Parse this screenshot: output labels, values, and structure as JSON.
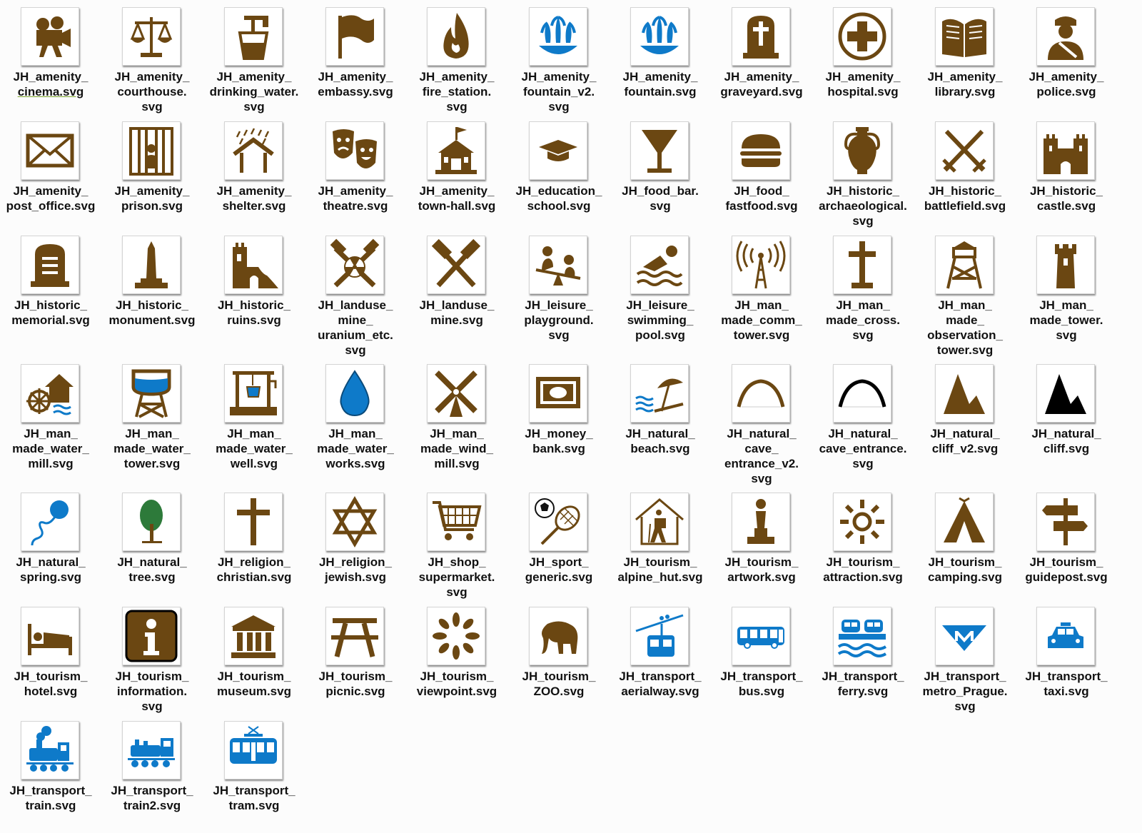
{
  "colors": {
    "brown": "#6b4712",
    "blue": "#0e7ac9",
    "black": "#000000"
  },
  "items": [
    {
      "lines": [
        "JH_amenity_",
        "cinema.svg"
      ],
      "icon": "cinema-icon",
      "color": "brown",
      "selected": true
    },
    {
      "lines": [
        "JH_amenity_",
        "courthouse.",
        "svg"
      ],
      "icon": "scales-icon",
      "color": "brown"
    },
    {
      "lines": [
        "JH_amenity_",
        "drinking_water.",
        "svg"
      ],
      "icon": "tap-cup-icon",
      "color": "brown"
    },
    {
      "lines": [
        "JH_amenity_",
        "embassy.svg"
      ],
      "icon": "flag-icon",
      "color": "brown"
    },
    {
      "lines": [
        "JH_amenity_",
        "fire_station.",
        "svg"
      ],
      "icon": "flame-icon",
      "color": "brown"
    },
    {
      "lines": [
        "JH_amenity_",
        "fountain_v2.",
        "svg"
      ],
      "icon": "fountain-icon",
      "color": "blue"
    },
    {
      "lines": [
        "JH_amenity_",
        "fountain.svg"
      ],
      "icon": "fountain-icon",
      "color": "blue"
    },
    {
      "lines": [
        "JH_amenity_",
        "graveyard.svg"
      ],
      "icon": "gravestone-cross-icon",
      "color": "brown"
    },
    {
      "lines": [
        "JH_amenity_",
        "hospital.svg"
      ],
      "icon": "hospital-cross-icon",
      "color": "brown"
    },
    {
      "lines": [
        "JH_amenity_",
        "library.svg"
      ],
      "icon": "book-icon",
      "color": "brown"
    },
    {
      "lines": [
        "JH_amenity_",
        "police.svg"
      ],
      "icon": "police-icon",
      "color": "brown"
    },
    {
      "lines": [
        "JH_amenity_",
        "post_office.svg"
      ],
      "icon": "envelope-icon",
      "color": "brown"
    },
    {
      "lines": [
        "JH_amenity_",
        "prison.svg"
      ],
      "icon": "prison-bars-icon",
      "color": "brown"
    },
    {
      "lines": [
        "JH_amenity_",
        "shelter.svg"
      ],
      "icon": "shelter-rain-icon",
      "color": "brown"
    },
    {
      "lines": [
        "JH_amenity_",
        "theatre.svg"
      ],
      "icon": "theatre-masks-icon",
      "color": "brown"
    },
    {
      "lines": [
        "JH_amenity_",
        "town-hall.svg"
      ],
      "icon": "town-hall-icon",
      "color": "brown"
    },
    {
      "lines": [
        "JH_education_",
        "school.svg"
      ],
      "icon": "mortarboard-icon",
      "color": "brown"
    },
    {
      "lines": [
        "JH_food_bar.",
        "svg"
      ],
      "icon": "cocktail-glass-icon",
      "color": "brown"
    },
    {
      "lines": [
        "JH_food_",
        "fastfood.svg"
      ],
      "icon": "burger-icon",
      "color": "brown"
    },
    {
      "lines": [
        "JH_historic_",
        "archaeological.",
        "svg"
      ],
      "icon": "amphora-icon",
      "color": "brown"
    },
    {
      "lines": [
        "JH_historic_",
        "battlefield.svg"
      ],
      "icon": "crossed-swords-icon",
      "color": "brown"
    },
    {
      "lines": [
        "JH_historic_",
        "castle.svg"
      ],
      "icon": "castle-icon",
      "color": "brown"
    },
    {
      "lines": [
        "JH_historic_",
        "memorial.svg"
      ],
      "icon": "memorial-stone-icon",
      "color": "brown"
    },
    {
      "lines": [
        "JH_historic_",
        "monument.svg"
      ],
      "icon": "obelisk-icon",
      "color": "brown"
    },
    {
      "lines": [
        "JH_historic_",
        "ruins.svg"
      ],
      "icon": "ruins-icon",
      "color": "brown"
    },
    {
      "lines": [
        "JH_landuse_",
        "mine_",
        "uranium_etc.",
        "svg"
      ],
      "icon": "mine-radiation-icon",
      "color": "brown"
    },
    {
      "lines": [
        "JH_landuse_",
        "mine.svg"
      ],
      "icon": "crossed-hammers-icon",
      "color": "brown"
    },
    {
      "lines": [
        "JH_leisure_",
        "playground.",
        "svg"
      ],
      "icon": "seesaw-icon",
      "color": "brown"
    },
    {
      "lines": [
        "JH_leisure_",
        "swimming_",
        "pool.svg"
      ],
      "icon": "swimmer-icon",
      "color": "brown"
    },
    {
      "lines": [
        "JH_man_",
        "made_comm_",
        "tower.svg"
      ],
      "icon": "radio-tower-icon",
      "color": "brown"
    },
    {
      "lines": [
        "JH_man_",
        "made_cross.",
        "svg"
      ],
      "icon": "wayside-cross-icon",
      "color": "brown"
    },
    {
      "lines": [
        "JH_man_",
        "made_",
        "observation_",
        "tower.svg"
      ],
      "icon": "observation-tower-icon",
      "color": "brown"
    },
    {
      "lines": [
        "JH_man_",
        "made_tower.",
        "svg"
      ],
      "icon": "tower-icon",
      "color": "brown"
    },
    {
      "lines": [
        "JH_man_",
        "made_water_",
        "mill.svg"
      ],
      "icon": "water-mill-icon",
      "color": "brown"
    },
    {
      "lines": [
        "JH_man_",
        "made_water_",
        "tower.svg"
      ],
      "icon": "water-tower-icon",
      "color": "brown"
    },
    {
      "lines": [
        "JH_man_",
        "made_water_",
        "well.svg"
      ],
      "icon": "well-icon",
      "color": "brown"
    },
    {
      "lines": [
        "JH_man_",
        "made_water_",
        "works.svg"
      ],
      "icon": "water-drop-icon",
      "color": "blue"
    },
    {
      "lines": [
        "JH_man_",
        "made_wind_",
        "mill.svg"
      ],
      "icon": "windmill-icon",
      "color": "brown"
    },
    {
      "lines": [
        "JH_money_",
        "bank.svg"
      ],
      "icon": "banknote-icon",
      "color": "brown"
    },
    {
      "lines": [
        "JH_natural_",
        "beach.svg"
      ],
      "icon": "beach-umbrella-icon",
      "color": "brown"
    },
    {
      "lines": [
        "JH_natural_",
        "cave_",
        "entrance_v2.",
        "svg"
      ],
      "icon": "cave-arch-icon",
      "color": "brown"
    },
    {
      "lines": [
        "JH_natural_",
        "cave_entrance.",
        "svg"
      ],
      "icon": "cave-arch-icon",
      "color": "black"
    },
    {
      "lines": [
        "JH_natural_",
        "cliff_v2.svg"
      ],
      "icon": "cliff-icon",
      "color": "brown"
    },
    {
      "lines": [
        "JH_natural_",
        "cliff.svg"
      ],
      "icon": "cliff-icon",
      "color": "black"
    },
    {
      "lines": [
        "JH_natural_",
        "spring.svg"
      ],
      "icon": "spring-icon",
      "color": "blue"
    },
    {
      "lines": [
        "JH_natural_",
        "tree.svg"
      ],
      "icon": "tree-icon",
      "color": "brown"
    },
    {
      "lines": [
        "JH_religion_",
        "christian.svg"
      ],
      "icon": "latin-cross-icon",
      "color": "brown"
    },
    {
      "lines": [
        "JH_religion_",
        "jewish.svg"
      ],
      "icon": "star-of-david-icon",
      "color": "brown"
    },
    {
      "lines": [
        "JH_shop_",
        "supermarket.",
        "svg"
      ],
      "icon": "shopping-cart-icon",
      "color": "brown"
    },
    {
      "lines": [
        "JH_sport_",
        "generic.svg"
      ],
      "icon": "ball-racket-icon",
      "color": "brown"
    },
    {
      "lines": [
        "JH_tourism_",
        "alpine_hut.svg"
      ],
      "icon": "hiker-hut-icon",
      "color": "brown"
    },
    {
      "lines": [
        "JH_tourism_",
        "artwork.svg"
      ],
      "icon": "statue-icon",
      "color": "brown"
    },
    {
      "lines": [
        "JH_tourism_",
        "attraction.svg"
      ],
      "icon": "sun-icon",
      "color": "brown"
    },
    {
      "lines": [
        "JH_tourism_",
        "camping.svg"
      ],
      "icon": "tent-icon",
      "color": "brown"
    },
    {
      "lines": [
        "JH_tourism_",
        "guidepost.svg"
      ],
      "icon": "signpost-icon",
      "color": "brown"
    },
    {
      "lines": [
        "JH_tourism_",
        "hotel.svg"
      ],
      "icon": "bed-icon",
      "color": "brown"
    },
    {
      "lines": [
        "JH_tourism_",
        "information.",
        "svg"
      ],
      "icon": "info-icon",
      "color": "brown"
    },
    {
      "lines": [
        "JH_tourism_",
        "museum.svg"
      ],
      "icon": "museum-icon",
      "color": "brown"
    },
    {
      "lines": [
        "JH_tourism_",
        "picnic.svg"
      ],
      "icon": "picnic-table-icon",
      "color": "brown"
    },
    {
      "lines": [
        "JH_tourism_",
        "viewpoint.svg"
      ],
      "icon": "viewpoint-icon",
      "color": "brown"
    },
    {
      "lines": [
        "JH_tourism_",
        "ZOO.svg"
      ],
      "icon": "elephant-icon",
      "color": "brown"
    },
    {
      "lines": [
        "JH_transport_",
        "aerialway.svg"
      ],
      "icon": "cable-car-icon",
      "color": "blue"
    },
    {
      "lines": [
        "JH_transport_",
        "bus.svg"
      ],
      "icon": "bus-icon",
      "color": "blue"
    },
    {
      "lines": [
        "JH_transport_",
        "ferry.svg"
      ],
      "icon": "ferry-icon",
      "color": "blue"
    },
    {
      "lines": [
        "JH_transport_",
        "metro_Prague.",
        "svg"
      ],
      "icon": "metro-icon",
      "color": "blue"
    },
    {
      "lines": [
        "JH_transport_",
        "taxi.svg"
      ],
      "icon": "taxi-icon",
      "color": "blue"
    },
    {
      "lines": [
        "JH_transport_",
        "train.svg"
      ],
      "icon": "steam-train-icon",
      "color": "blue"
    },
    {
      "lines": [
        "JH_transport_",
        "train2.svg"
      ],
      "icon": "locomotive-icon",
      "color": "blue"
    },
    {
      "lines": [
        "JH_transport_",
        "tram.svg"
      ],
      "icon": "tram-icon",
      "color": "blue"
    }
  ]
}
